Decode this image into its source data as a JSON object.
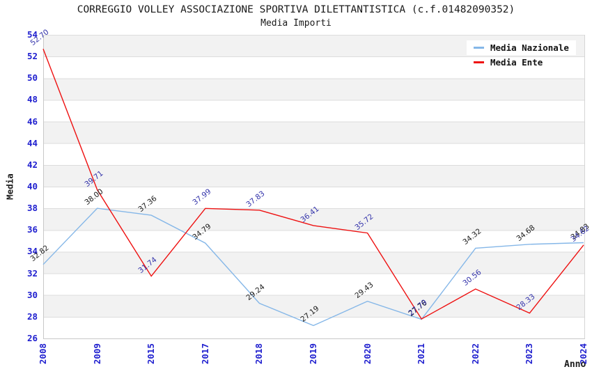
{
  "title": "CORREGGIO VOLLEY ASSOCIAZIONE SPORTIVA DILETTANTISTICA (c.f.01482090352)",
  "subtitle": "Media Importi",
  "chart_data": {
    "type": "line",
    "categories": [
      "2008",
      "2009",
      "2015",
      "2017",
      "2018",
      "2019",
      "2020",
      "2021",
      "2022",
      "2023",
      "2024"
    ],
    "series": [
      {
        "name": "Media Nazionale",
        "color": "#85b7e8",
        "label_color": "#1a1a1a",
        "values": [
          32.82,
          38.0,
          37.36,
          34.79,
          29.24,
          27.19,
          29.43,
          27.76,
          34.32,
          34.68,
          34.83
        ]
      },
      {
        "name": "Media Ente",
        "color": "#ee1111",
        "label_color": "#3434ab",
        "values": [
          52.7,
          39.71,
          31.74,
          37.99,
          37.83,
          36.41,
          35.72,
          27.79,
          30.56,
          28.33,
          34.62
        ]
      }
    ],
    "xlabel": "Anno",
    "ylabel": "Media",
    "ylim": [
      26,
      54
    ],
    "yticks": [
      26,
      28,
      30,
      32,
      34,
      36,
      38,
      40,
      42,
      44,
      46,
      48,
      50,
      52,
      54
    ],
    "grid": true,
    "legend_position": "top-right",
    "stripe_colors": [
      "#f2f2f2",
      "#ffffff"
    ],
    "tick_color": "#2020cf"
  }
}
